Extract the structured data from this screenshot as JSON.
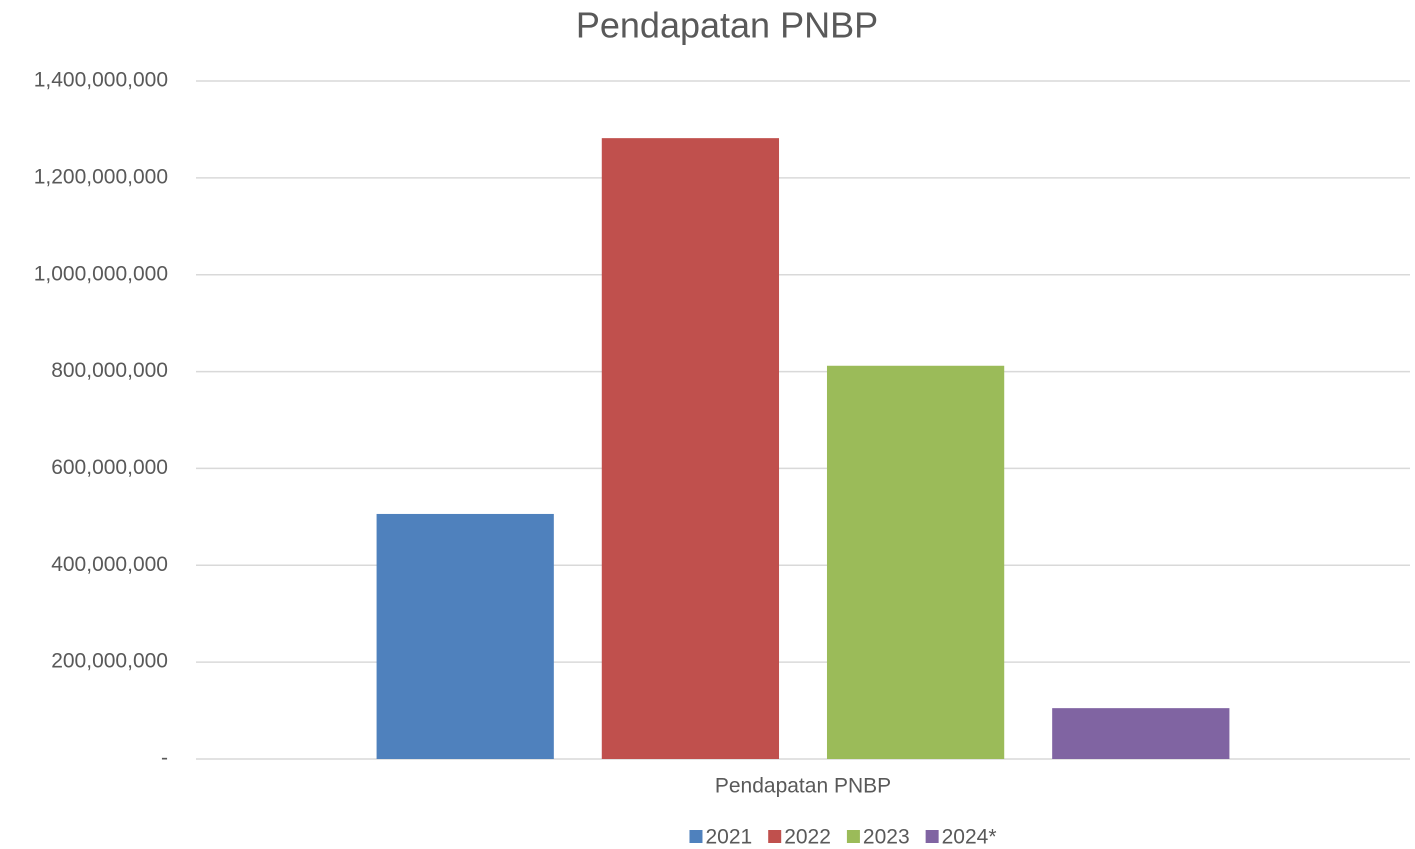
{
  "chart_data": {
    "type": "bar",
    "title": "Pendapatan PNBP",
    "categories": [
      "Pendapatan PNBP"
    ],
    "series": [
      {
        "name": "2021",
        "color": "#4f81bd",
        "values": [
          506000000
        ]
      },
      {
        "name": "2022",
        "color": "#c0504d",
        "values": [
          1282000000
        ]
      },
      {
        "name": "2023",
        "color": "#9bbb59",
        "values": [
          812000000
        ]
      },
      {
        "name": "2024*",
        "color": "#8064a2",
        "values": [
          105000000
        ]
      }
    ],
    "ylim": [
      0,
      1400000000
    ],
    "yticks": [
      {
        "value": 0,
        "label": "-"
      },
      {
        "value": 200000000,
        "label": "200,000,000"
      },
      {
        "value": 400000000,
        "label": "400,000,000"
      },
      {
        "value": 600000000,
        "label": "600,000,000"
      },
      {
        "value": 800000000,
        "label": "800,000,000"
      },
      {
        "value": 1000000000,
        "label": "1,000,000,000"
      },
      {
        "value": 1200000000,
        "label": "1,200,000,000"
      },
      {
        "value": 1400000000,
        "label": "1,400,000,000"
      }
    ],
    "grid": true,
    "legend": "bottom"
  }
}
